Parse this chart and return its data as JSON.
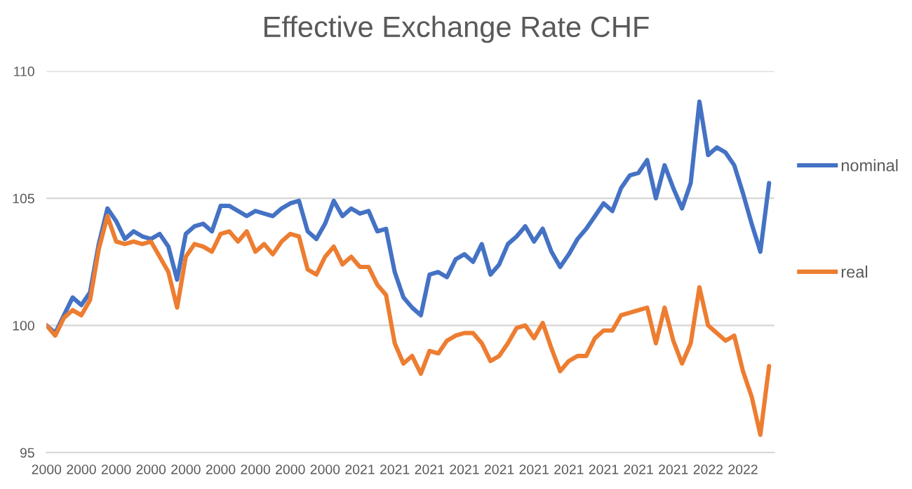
{
  "chart_data": {
    "type": "line",
    "title": "Effective Exchange Rate CHF",
    "categories": [
      "2000",
      null,
      null,
      null,
      "2000",
      null,
      null,
      null,
      "2000",
      null,
      null,
      null,
      "2000",
      null,
      null,
      null,
      "2000",
      null,
      null,
      null,
      "2000",
      null,
      null,
      null,
      "2000",
      null,
      null,
      null,
      "2000",
      null,
      null,
      null,
      "2000",
      null,
      null,
      null,
      "2021",
      null,
      null,
      null,
      "2021",
      null,
      null,
      null,
      "2021",
      null,
      null,
      null,
      "2021",
      null,
      null,
      null,
      "2021",
      null,
      null,
      null,
      "2021",
      null,
      null,
      null,
      "2021",
      null,
      null,
      null,
      "2021",
      null,
      null,
      null,
      "2021",
      null,
      null,
      null,
      "2021",
      null,
      null,
      null,
      "2022",
      null,
      null,
      null,
      "2022",
      null,
      null,
      null
    ],
    "ylim": [
      95,
      110
    ],
    "yticks": [
      95,
      100,
      105,
      110
    ],
    "grid": "y",
    "legend": "right",
    "series": [
      {
        "name": "nominal",
        "color": "#4472c4",
        "values": [
          100.0,
          99.7,
          100.4,
          101.1,
          100.8,
          101.3,
          103.2,
          104.6,
          104.1,
          103.4,
          103.7,
          103.5,
          103.4,
          103.6,
          103.1,
          101.8,
          103.6,
          103.9,
          104.0,
          103.7,
          104.7,
          104.7,
          104.5,
          104.3,
          104.5,
          104.4,
          104.3,
          104.6,
          104.8,
          104.9,
          103.7,
          103.4,
          104.0,
          104.9,
          104.3,
          104.6,
          104.4,
          104.5,
          103.7,
          103.8,
          102.1,
          101.1,
          100.7,
          100.4,
          102.0,
          102.1,
          101.9,
          102.6,
          102.8,
          102.5,
          103.2,
          102.0,
          102.4,
          103.2,
          103.5,
          103.9,
          103.3,
          103.8,
          102.9,
          102.3,
          102.8,
          103.4,
          103.8,
          104.3,
          104.8,
          104.5,
          105.4,
          105.9,
          106.0,
          106.5,
          105.0,
          106.3,
          105.4,
          104.6,
          105.6,
          108.8,
          106.7,
          107.0,
          106.8,
          106.3,
          105.2,
          104.0,
          102.9,
          105.6
        ]
      },
      {
        "name": "real",
        "color": "#ed7d31",
        "values": [
          100.0,
          99.6,
          100.3,
          100.6,
          100.4,
          101.0,
          103.0,
          104.3,
          103.3,
          103.2,
          103.3,
          103.2,
          103.3,
          102.7,
          102.1,
          100.7,
          102.7,
          103.2,
          103.1,
          102.9,
          103.6,
          103.7,
          103.3,
          103.7,
          102.9,
          103.2,
          102.8,
          103.3,
          103.6,
          103.5,
          102.2,
          102.0,
          102.7,
          103.1,
          102.4,
          102.7,
          102.3,
          102.3,
          101.6,
          101.2,
          99.3,
          98.5,
          98.8,
          98.1,
          99.0,
          98.9,
          99.4,
          99.6,
          99.7,
          99.7,
          99.3,
          98.6,
          98.8,
          99.3,
          99.9,
          100.0,
          99.5,
          100.1,
          99.1,
          98.2,
          98.6,
          98.8,
          98.8,
          99.5,
          99.8,
          99.8,
          100.4,
          100.5,
          100.6,
          100.7,
          99.3,
          100.7,
          99.4,
          98.5,
          99.3,
          101.5,
          100.0,
          99.7,
          99.4,
          99.6,
          98.2,
          97.2,
          95.7,
          98.4
        ]
      }
    ]
  }
}
